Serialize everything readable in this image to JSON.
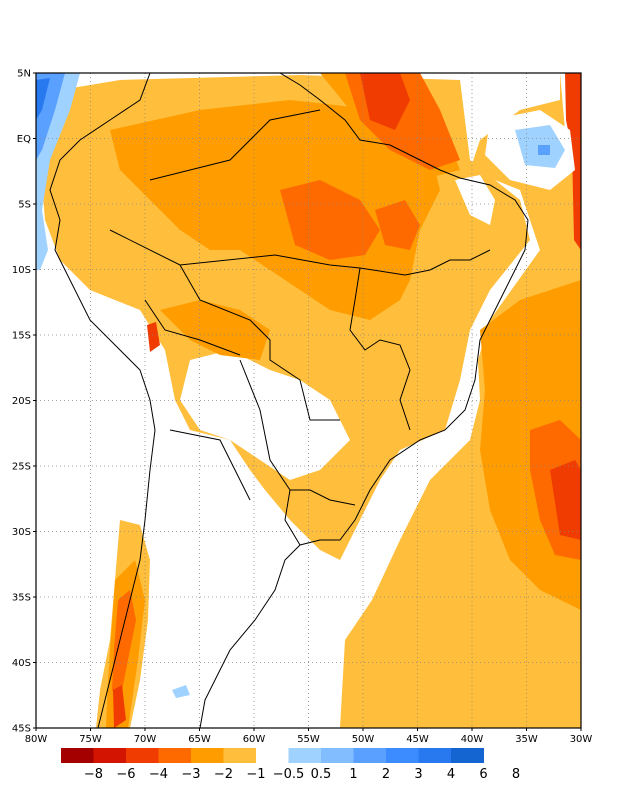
{
  "map": {
    "lon_range": [
      -80,
      -30
    ],
    "lat_range": [
      -45,
      5
    ],
    "grid": "dotted",
    "lat_ticks": [
      "5N",
      "EQ",
      "5S",
      "10S",
      "15S",
      "20S",
      "25S",
      "30S",
      "35S",
      "40S",
      "45S"
    ],
    "lon_ticks": [
      "80W",
      "75W",
      "70W",
      "65W",
      "60W",
      "55W",
      "50W",
      "45W",
      "40W",
      "35W",
      "30W"
    ]
  },
  "colorbar": {
    "labels": [
      "−8",
      "−6",
      "−4",
      "−3",
      "−2",
      "−1",
      "−0.5",
      "0.5",
      "1",
      "2",
      "3",
      "4",
      "6",
      "8"
    ],
    "colors": [
      "#a50000",
      "#d21400",
      "#f03c00",
      "#ff6a00",
      "#ff9d00",
      "#ffbe3c",
      "#ffffff",
      "#a0d2ff",
      "#82beff",
      "#5aa0ff",
      "#3c8cff",
      "#2878f0",
      "#1464d2"
    ]
  },
  "palette": {
    "light_orange": "#ffbe3c",
    "orange": "#ff9d00",
    "dark_orange": "#ff6a00",
    "red": "#f03c00",
    "dark_red": "#d21400",
    "light_blue": "#a0d2ff",
    "blue": "#5aa0ff",
    "dark_blue": "#2878f0"
  }
}
